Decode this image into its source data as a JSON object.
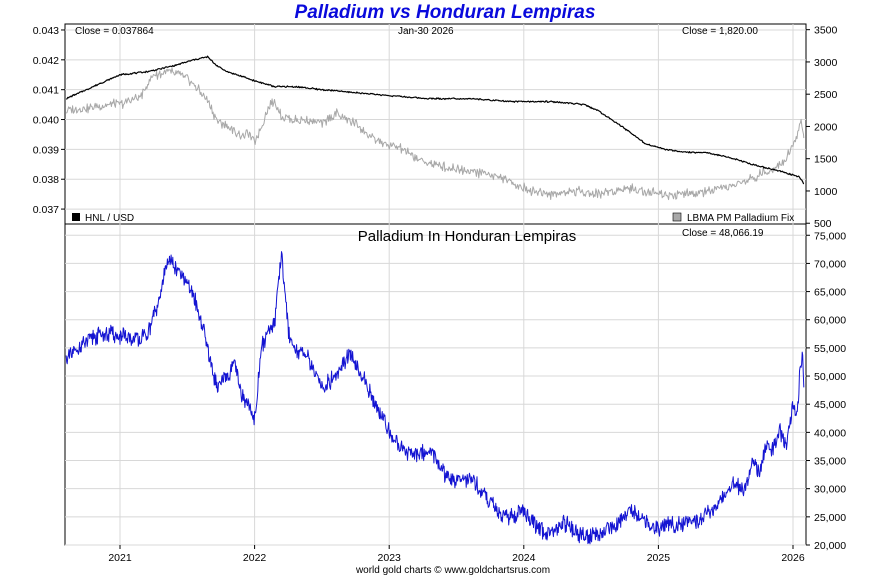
{
  "title": "Palladium vs Honduran Lempiras",
  "credit": "world gold charts © www.goldchartsrus.com",
  "top_panel": {
    "close_left": "Close = 0.037864",
    "date": "Jan-30  2026",
    "close_right": "Close = 1,820.00",
    "legend_left": "HNL / USD",
    "legend_right": "LBMA PM Palladium Fix"
  },
  "bottom_panel": {
    "subtitle": "Palladium In Honduran Lempiras",
    "close": "Close = 48,066.19"
  },
  "colors": {
    "title": "#0a0adc",
    "hnl_usd": "#000000",
    "palladium_usd": "#a8a8a8",
    "palladium_hnl": "#1414d2"
  },
  "chart_data": [
    {
      "type": "line",
      "x_labels": [
        "2021",
        "2022",
        "2023",
        "2024",
        "2025",
        "2026"
      ],
      "y_left_ticks": [
        "0.037",
        "0.038",
        "0.039",
        "0.040",
        "0.041",
        "0.042",
        "0.043"
      ],
      "y_right_ticks": [
        "500",
        "1000",
        "1500",
        "2000",
        "2500",
        "3000",
        "3500"
      ],
      "ylim_left": [
        0.0365,
        0.0432
      ],
      "ylim_right": [
        500,
        3600
      ],
      "series": [
        {
          "name": "HNL / USD",
          "axis": "left",
          "x": [
            2020.6,
            2020.75,
            2020.9,
            2021.0,
            2021.2,
            2021.4,
            2021.55,
            2021.65,
            2021.72,
            2021.8,
            2022.0,
            2022.15,
            2022.3,
            2022.5,
            2022.75,
            2023.0,
            2023.3,
            2023.6,
            2023.9,
            2024.2,
            2024.45,
            2024.55,
            2024.75,
            2024.9,
            2025.05,
            2025.2,
            2025.35,
            2025.55,
            2025.62,
            2025.78,
            2025.88,
            2025.96,
            2026.02,
            2026.04,
            2026.06,
            2026.08
          ],
          "values": [
            0.0407,
            0.041,
            0.0413,
            0.0415,
            0.0416,
            0.0418,
            0.042,
            0.0421,
            0.0418,
            0.0416,
            0.0413,
            0.0411,
            0.0411,
            0.041,
            0.0409,
            0.0408,
            0.0407,
            0.0407,
            0.0406,
            0.0406,
            0.0405,
            0.0403,
            0.0397,
            0.0392,
            0.039,
            0.0389,
            0.0389,
            0.0387,
            0.0386,
            0.0384,
            0.0383,
            0.0382,
            0.0381,
            0.0381,
            0.038,
            0.03786
          ]
        },
        {
          "name": "LBMA PM Palladium Fix",
          "axis": "right",
          "x": [
            2020.6,
            2020.8,
            2021.0,
            2021.15,
            2021.25,
            2021.35,
            2021.45,
            2021.55,
            2021.65,
            2021.72,
            2021.8,
            2021.9,
            2021.95,
            2022.0,
            2022.05,
            2022.1,
            2022.15,
            2022.2,
            2022.3,
            2022.4,
            2022.5,
            2022.6,
            2022.75,
            2022.85,
            2023.0,
            2023.1,
            2023.2,
            2023.35,
            2023.5,
            2023.75,
            2023.9,
            2024.05,
            2024.2,
            2024.4,
            2024.55,
            2024.75,
            2024.9,
            2025.05,
            2025.25,
            2025.4,
            2025.5,
            2025.65,
            2025.75,
            2025.85,
            2025.95,
            2026.0,
            2026.03,
            2026.06,
            2026.08
          ],
          "values": [
            2250,
            2300,
            2350,
            2450,
            2800,
            2850,
            2800,
            2650,
            2400,
            2100,
            2000,
            1850,
            1900,
            1750,
            2000,
            2300,
            2400,
            2150,
            2100,
            2100,
            2050,
            2200,
            2050,
            1850,
            1700,
            1650,
            1500,
            1400,
            1350,
            1250,
            1150,
            1000,
            950,
            1000,
            950,
            1050,
            1000,
            950,
            950,
            1000,
            1050,
            1150,
            1250,
            1350,
            1500,
            1700,
            1850,
            2100,
            1820
          ]
        }
      ]
    },
    {
      "type": "line",
      "title": "Palladium In Honduran Lempiras",
      "x_labels": [
        "2021",
        "2022",
        "2023",
        "2024",
        "2025",
        "2026"
      ],
      "y_right_ticks": [
        "20,000",
        "25,000",
        "30,000",
        "35,000",
        "40,000",
        "45,000",
        "50,000",
        "55,000",
        "60,000",
        "65,000",
        "70,000",
        "75,000"
      ],
      "ylim": [
        20000,
        77000
      ],
      "series": [
        {
          "name": "Palladium In Honduran Lempiras",
          "x": [
            2020.6,
            2020.7,
            2020.8,
            2020.9,
            2021.0,
            2021.1,
            2021.2,
            2021.3,
            2021.35,
            2021.45,
            2021.55,
            2021.6,
            2021.65,
            2021.72,
            2021.8,
            2021.85,
            2021.9,
            2021.95,
            2022.0,
            2022.05,
            2022.1,
            2022.15,
            2022.2,
            2022.25,
            2022.3,
            2022.4,
            2022.5,
            2022.6,
            2022.7,
            2022.8,
            2022.9,
            2023.0,
            2023.1,
            2023.2,
            2023.3,
            2023.4,
            2023.5,
            2023.6,
            2023.7,
            2023.8,
            2023.9,
            2024.0,
            2024.1,
            2024.2,
            2024.3,
            2024.4,
            2024.5,
            2024.6,
            2024.7,
            2024.8,
            2024.9,
            2025.0,
            2025.1,
            2025.2,
            2025.3,
            2025.4,
            2025.5,
            2025.55,
            2025.65,
            2025.7,
            2025.75,
            2025.8,
            2025.85,
            2025.9,
            2025.95,
            2026.0,
            2026.03,
            2026.05,
            2026.07,
            2026.08
          ],
          "values": [
            53000,
            55000,
            57000,
            57500,
            57000,
            56500,
            57000,
            64000,
            71000,
            68000,
            64000,
            60000,
            55000,
            48000,
            50000,
            52000,
            47000,
            45000,
            42000,
            55000,
            58000,
            60000,
            72000,
            58000,
            55000,
            53000,
            48000,
            50000,
            54000,
            50000,
            45000,
            40000,
            37000,
            36000,
            37000,
            33000,
            31000,
            32000,
            29000,
            26000,
            25000,
            26000,
            23000,
            22000,
            24000,
            22000,
            21500,
            22500,
            24000,
            26000,
            24000,
            23000,
            23500,
            24000,
            24500,
            26000,
            29000,
            31000,
            30000,
            35000,
            33000,
            38000,
            37000,
            40000,
            38000,
            45000,
            43000,
            50000,
            55000,
            48066
          ]
        }
      ]
    }
  ]
}
